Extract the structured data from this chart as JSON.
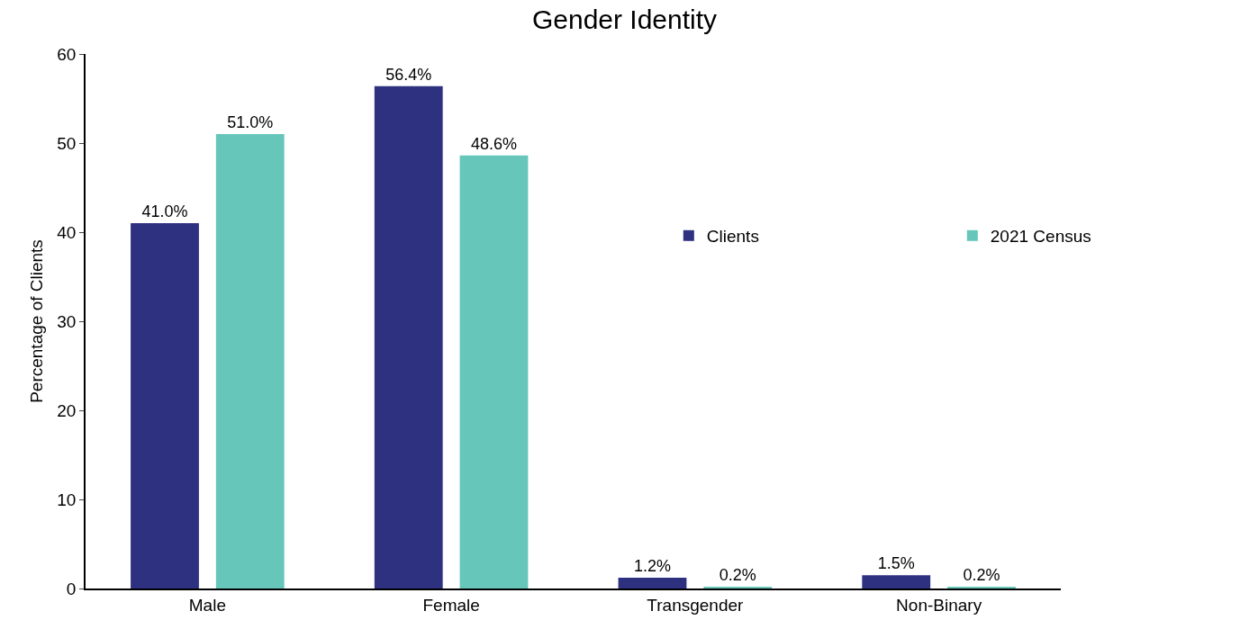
{
  "chart_data": {
    "type": "bar",
    "title": "Gender Identity",
    "ylabel": "Percentage of Clients",
    "categories": [
      "Male",
      "Female",
      "Transgender",
      "Non-Binary"
    ],
    "series": [
      {
        "name": "Clients",
        "color": "#2e3080",
        "values": [
          41.0,
          56.4,
          1.2,
          1.5
        ],
        "value_labels": [
          "41.0%",
          "56.4%",
          "1.2%",
          "1.5%"
        ]
      },
      {
        "name": "2021 Census",
        "color": "#66c6b9",
        "values": [
          51.0,
          48.6,
          0.2,
          0.2
        ],
        "value_labels": [
          "51.0%",
          "48.6%",
          "0.2%",
          "0.2%"
        ]
      }
    ],
    "ylim": [
      0,
      60
    ],
    "yticks": [
      0,
      10,
      20,
      30,
      40,
      50,
      60
    ],
    "grid": false,
    "legend": "top right"
  }
}
